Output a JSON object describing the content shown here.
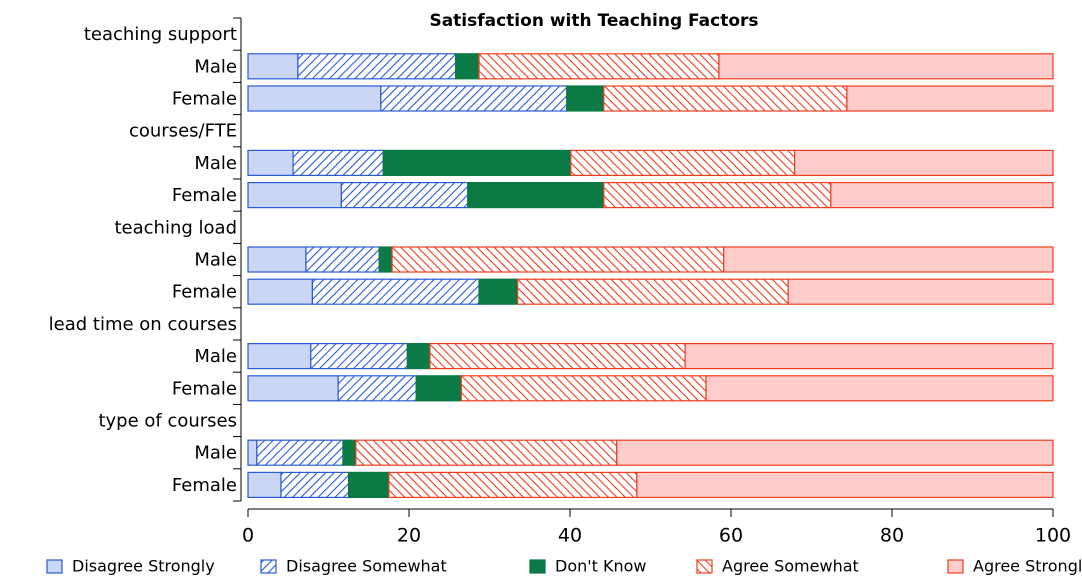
{
  "chart_data": {
    "type": "stacked-barh",
    "title": "Satisfaction with Teaching Factors",
    "categories": [
      "teaching support",
      "Male",
      "Female",
      "courses/FTE",
      "Male",
      "Female",
      "teaching load",
      "Male",
      "Female",
      "lead time on courses",
      "Male",
      "Female",
      "type of courses",
      "Male",
      "Female"
    ],
    "series": [
      {
        "name": "Disagree Strongly",
        "color": "#2a5bd7",
        "fill": "#c9d6f5",
        "hatch": "none",
        "values": [
          null,
          6.2,
          16.5,
          null,
          5.6,
          11.6,
          null,
          7.2,
          8.0,
          null,
          7.8,
          11.2,
          null,
          1.1,
          4.1
        ]
      },
      {
        "name": "Disagree Somewhat",
        "color": "#2a5bd7",
        "fill": "#ffffff",
        "hatch": "forward",
        "values": [
          null,
          19.6,
          23.1,
          null,
          11.2,
          15.7,
          null,
          9.1,
          20.7,
          null,
          12.0,
          9.7,
          null,
          10.7,
          8.4
        ]
      },
      {
        "name": "Don't Know",
        "color": "#0b7a45",
        "fill": "#0b7a45",
        "hatch": "none",
        "values": [
          null,
          2.9,
          4.6,
          null,
          23.3,
          16.9,
          null,
          1.6,
          4.8,
          null,
          2.8,
          5.6,
          null,
          1.6,
          5.0
        ]
      },
      {
        "name": "Agree Somewhat",
        "color": "#f23c1e",
        "fill": "#ffffff",
        "hatch": "back",
        "values": [
          null,
          29.8,
          30.2,
          null,
          27.8,
          28.2,
          null,
          41.2,
          33.6,
          null,
          31.7,
          30.4,
          null,
          32.4,
          30.8
        ]
      },
      {
        "name": "Agree Strongly",
        "color": "#f23c1e",
        "fill": "#ffcccc",
        "hatch": "none",
        "values": [
          null,
          41.5,
          25.6,
          null,
          32.1,
          27.6,
          null,
          40.9,
          32.9,
          null,
          45.7,
          43.1,
          null,
          54.2,
          51.7
        ]
      }
    ],
    "xlim": [
      0,
      100
    ],
    "xticks": [
      0,
      20,
      40,
      60,
      80,
      100
    ],
    "legend": "bottom"
  }
}
